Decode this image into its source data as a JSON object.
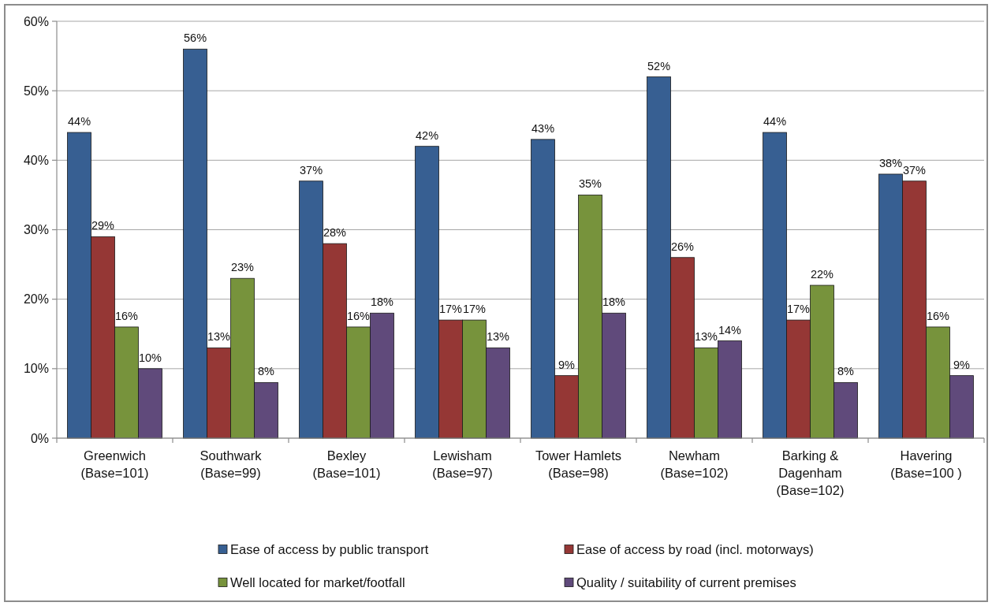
{
  "chart_data": {
    "type": "bar",
    "categories": [
      "Greenwich\n(Base=101)",
      "Southwark\n(Base=99)",
      "Bexley\n(Base=101)",
      "Lewisham\n(Base=97)",
      "Tower Hamlets\n(Base=98)",
      "Newham\n(Base=102)",
      "Barking &\nDagenham\n(Base=102)",
      "Havering\n(Base=100 )"
    ],
    "series": [
      {
        "name": "Ease of access by public transport",
        "color": "#375f92",
        "values": [
          44,
          56,
          37,
          42,
          43,
          52,
          44,
          38
        ],
        "value_labels": [
          "44%",
          "56%",
          "37%",
          "42%",
          "43%",
          "52%",
          "44%",
          "38%"
        ]
      },
      {
        "name": "Ease of access by road (incl. motorways)",
        "color": "#953735",
        "values": [
          29,
          13,
          28,
          17,
          9,
          26,
          17,
          37
        ],
        "value_labels": [
          "29%",
          "13%",
          "28%",
          "17%",
          "9%",
          "26%",
          "17%",
          "37%"
        ]
      },
      {
        "name": "Well located for market/footfall",
        "color": "#77933c",
        "values": [
          16,
          23,
          16,
          17,
          35,
          13,
          22,
          16
        ],
        "value_labels": [
          "16%",
          "23%",
          "16%",
          "17%",
          "35%",
          "13%",
          "22%",
          "16%"
        ]
      },
      {
        "name": "Quality / suitability of current premises",
        "color": "#604a7b",
        "values": [
          10,
          8,
          18,
          13,
          18,
          14,
          8,
          9
        ],
        "value_labels": [
          "10%",
          "8%",
          "18%",
          "13%",
          "18%",
          "14%",
          "8%",
          "9%"
        ]
      }
    ],
    "ylim": [
      0,
      60
    ],
    "yticks": [
      {
        "value": 0,
        "label": "0%"
      },
      {
        "value": 10,
        "label": "10%"
      },
      {
        "value": 20,
        "label": "20%"
      },
      {
        "value": 30,
        "label": "30%"
      },
      {
        "value": 40,
        "label": "40%"
      },
      {
        "value": 50,
        "label": "50%"
      },
      {
        "value": 60,
        "label": "60%"
      }
    ],
    "grid": "y",
    "legend": "bottom"
  }
}
